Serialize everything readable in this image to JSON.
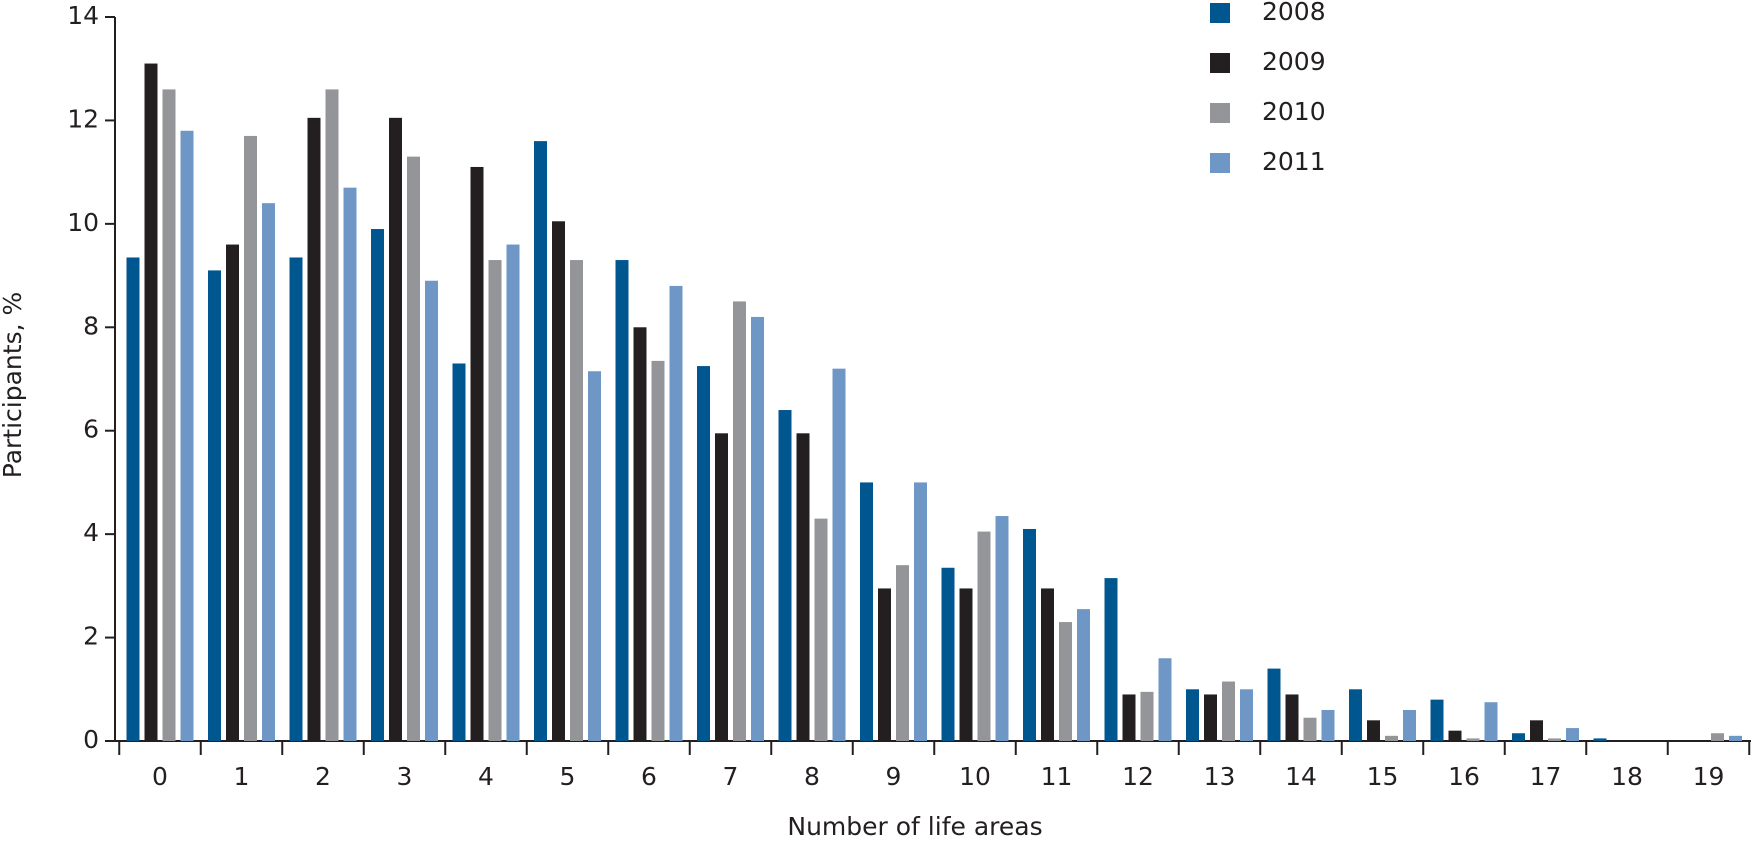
{
  "chart_data": {
    "type": "bar",
    "x_label": "Number of life areas",
    "y_label": "Participants, %",
    "categories": [
      "0",
      "1",
      "2",
      "3",
      "4",
      "5",
      "6",
      "7",
      "8",
      "9",
      "10",
      "11",
      "12",
      "13",
      "14",
      "15",
      "16",
      "17",
      "18",
      "19"
    ],
    "series": [
      {
        "name": "2008",
        "color": "#00568f",
        "values": [
          9.35,
          9.1,
          9.35,
          9.9,
          7.3,
          11.6,
          9.3,
          7.25,
          6.4,
          5.0,
          3.35,
          4.1,
          3.15,
          1.0,
          1.4,
          1.0,
          0.8,
          0.15,
          0.05,
          0
        ]
      },
      {
        "name": "2009",
        "color": "#231f20",
        "values": [
          13.1,
          9.6,
          12.05,
          12.05,
          11.1,
          10.05,
          8.0,
          5.95,
          5.95,
          2.95,
          2.95,
          2.95,
          0.9,
          0.9,
          0.9,
          0.4,
          0.2,
          0.4,
          0,
          0
        ]
      },
      {
        "name": "2010",
        "color": "#939598",
        "values": [
          12.6,
          11.7,
          12.6,
          11.3,
          9.3,
          9.3,
          7.35,
          8.5,
          4.3,
          3.4,
          4.05,
          2.3,
          0.95,
          1.15,
          0.45,
          0.1,
          0.05,
          0.05,
          0,
          0.15
        ]
      },
      {
        "name": "2011",
        "color": "#6f97c5",
        "values": [
          11.8,
          10.4,
          10.7,
          8.9,
          9.6,
          7.15,
          8.8,
          8.2,
          7.2,
          5.0,
          4.35,
          2.55,
          1.6,
          1.0,
          0.6,
          0.6,
          0.75,
          0.25,
          0,
          0.1
        ]
      }
    ],
    "ylim": [
      0,
      14
    ],
    "yticks": [
      0,
      2,
      4,
      6,
      8,
      10,
      12,
      14
    ],
    "legend": "top-right"
  }
}
